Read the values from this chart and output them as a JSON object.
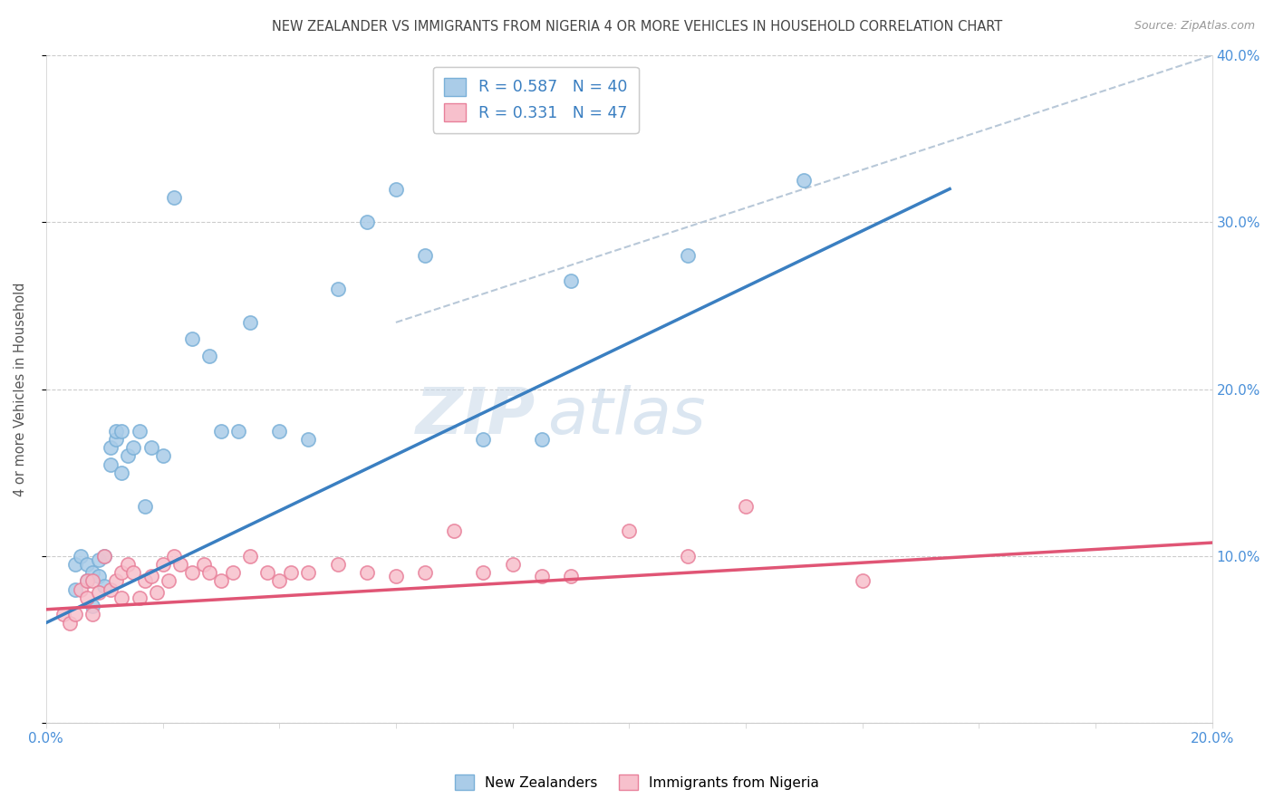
{
  "title": "NEW ZEALANDER VS IMMIGRANTS FROM NIGERIA 4 OR MORE VEHICLES IN HOUSEHOLD CORRELATION CHART",
  "source": "Source: ZipAtlas.com",
  "ylabel_left": "4 or more Vehicles in Household",
  "xlim": [
    0.0,
    0.2
  ],
  "ylim": [
    0.0,
    0.4
  ],
  "legend1_label": "R = 0.587   N = 40",
  "legend2_label": "R = 0.331   N = 47",
  "legend_bottom1": "New Zealanders",
  "legend_bottom2": "Immigrants from Nigeria",
  "blue_color": "#aacce8",
  "blue_edge_color": "#7ab0d8",
  "pink_color": "#f7c0cc",
  "pink_edge_color": "#e8809a",
  "blue_line_color": "#3a7fc1",
  "pink_line_color": "#e05575",
  "gray_dashed_color": "#b8c8d8",
  "title_color": "#444444",
  "axis_label_color": "#555555",
  "tick_color_blue": "#4a90d9",
  "watermark_text": "ZIPatlas",
  "blue_scatter_x": [
    0.005,
    0.005,
    0.006,
    0.007,
    0.007,
    0.008,
    0.008,
    0.009,
    0.009,
    0.01,
    0.01,
    0.011,
    0.011,
    0.012,
    0.012,
    0.013,
    0.013,
    0.014,
    0.015,
    0.016,
    0.017,
    0.018,
    0.02,
    0.022,
    0.025,
    0.028,
    0.03,
    0.033,
    0.035,
    0.04,
    0.045,
    0.05,
    0.055,
    0.06,
    0.065,
    0.075,
    0.085,
    0.09,
    0.11,
    0.13
  ],
  "blue_scatter_y": [
    0.08,
    0.095,
    0.1,
    0.085,
    0.095,
    0.07,
    0.09,
    0.088,
    0.098,
    0.082,
    0.1,
    0.165,
    0.155,
    0.17,
    0.175,
    0.175,
    0.15,
    0.16,
    0.165,
    0.175,
    0.13,
    0.165,
    0.16,
    0.315,
    0.23,
    0.22,
    0.175,
    0.175,
    0.24,
    0.175,
    0.17,
    0.26,
    0.3,
    0.32,
    0.28,
    0.17,
    0.17,
    0.265,
    0.28,
    0.325
  ],
  "pink_scatter_x": [
    0.003,
    0.004,
    0.005,
    0.006,
    0.007,
    0.007,
    0.008,
    0.008,
    0.009,
    0.01,
    0.011,
    0.012,
    0.013,
    0.013,
    0.014,
    0.015,
    0.016,
    0.017,
    0.018,
    0.019,
    0.02,
    0.021,
    0.022,
    0.023,
    0.025,
    0.027,
    0.028,
    0.03,
    0.032,
    0.035,
    0.038,
    0.04,
    0.042,
    0.045,
    0.05,
    0.055,
    0.06,
    0.065,
    0.07,
    0.075,
    0.08,
    0.085,
    0.09,
    0.1,
    0.11,
    0.12,
    0.14
  ],
  "pink_scatter_y": [
    0.065,
    0.06,
    0.065,
    0.08,
    0.075,
    0.085,
    0.065,
    0.085,
    0.078,
    0.1,
    0.08,
    0.085,
    0.075,
    0.09,
    0.095,
    0.09,
    0.075,
    0.085,
    0.088,
    0.078,
    0.095,
    0.085,
    0.1,
    0.095,
    0.09,
    0.095,
    0.09,
    0.085,
    0.09,
    0.1,
    0.09,
    0.085,
    0.09,
    0.09,
    0.095,
    0.09,
    0.088,
    0.09,
    0.115,
    0.09,
    0.095,
    0.088,
    0.088,
    0.115,
    0.1,
    0.13,
    0.085
  ],
  "blue_line_x": [
    0.0,
    0.155
  ],
  "blue_line_y": [
    0.06,
    0.32
  ],
  "pink_line_x": [
    0.0,
    0.2
  ],
  "pink_line_y": [
    0.068,
    0.108
  ],
  "gray_line_x": [
    0.06,
    0.2
  ],
  "gray_line_y": [
    0.24,
    0.4
  ]
}
